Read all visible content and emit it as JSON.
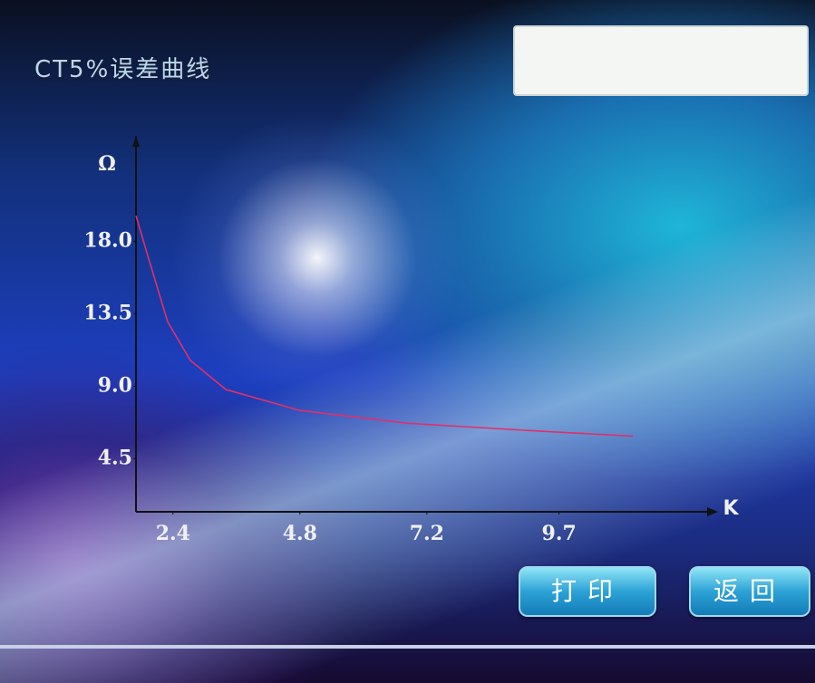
{
  "chart_data": {
    "type": "line",
    "title": "CT5%误差曲线",
    "y_label": "Ω",
    "x_label": "K",
    "x": [
      1.7,
      1.96,
      2.3,
      2.73,
      3.4,
      4.8,
      6.85,
      9.4,
      11.1
    ],
    "series": [
      {
        "color": "#e0306a",
        "values": [
          19.6,
          16.7,
          13.0,
          10.6,
          8.8,
          7.5,
          6.7,
          6.2,
          5.9
        ]
      }
    ],
    "xlim": [
      1.7,
      12.5
    ],
    "ylim": [
      1.2,
      24
    ],
    "xticks": [
      2.4,
      4.8,
      7.2,
      9.7
    ],
    "yticks": [
      4.5,
      {
        "value": 9,
        "label": "9.0"
      },
      13.5,
      {
        "value": 18,
        "label": "18.0"
      }
    ]
  },
  "buttons": [
    "打印",
    "返回"
  ]
}
